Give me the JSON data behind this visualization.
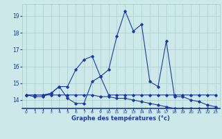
{
  "hours": [
    0,
    1,
    2,
    3,
    4,
    5,
    6,
    7,
    8,
    9,
    10,
    11,
    12,
    13,
    14,
    15,
    16,
    17,
    18,
    19,
    20,
    21,
    22,
    23
  ],
  "temp1": [
    14.3,
    14.2,
    14.2,
    14.4,
    14.8,
    14.1,
    13.8,
    13.8,
    15.1,
    15.4,
    15.8,
    17.8,
    19.3,
    18.1,
    18.5,
    15.1,
    14.8,
    17.5,
    14.2,
    14.2,
    14.0,
    13.9,
    13.7,
    13.6
  ],
  "temp2": [
    14.3,
    14.3,
    14.3,
    14.3,
    14.3,
    14.3,
    14.3,
    14.3,
    14.3,
    14.2,
    14.2,
    14.1,
    14.1,
    14.0,
    13.9,
    13.8,
    13.7,
    13.6,
    13.5,
    13.5,
    13.5,
    13.5,
    13.5,
    13.5
  ],
  "temp3": [
    14.3,
    14.3,
    14.3,
    14.4,
    14.8,
    14.8,
    15.8,
    16.4,
    16.6,
    15.4,
    14.3,
    14.3,
    14.3,
    14.3,
    14.3,
    14.3,
    14.3,
    14.3,
    14.3,
    14.3,
    14.3,
    14.3,
    14.3,
    14.3
  ],
  "line_color": "#1a3a9e",
  "bg_color": "#cce8e8",
  "grid_color": "#aacaca",
  "xlabel": "Graphe des températures (°c)",
  "yticks": [
    14,
    15,
    16,
    17,
    18,
    19
  ],
  "xticks": [
    0,
    1,
    2,
    3,
    4,
    5,
    6,
    7,
    8,
    9,
    10,
    11,
    12,
    13,
    14,
    15,
    16,
    17,
    18,
    19,
    20,
    21,
    22,
    23
  ],
  "ylim": [
    13.5,
    19.7
  ],
  "xlim": [
    -0.5,
    23.5
  ]
}
